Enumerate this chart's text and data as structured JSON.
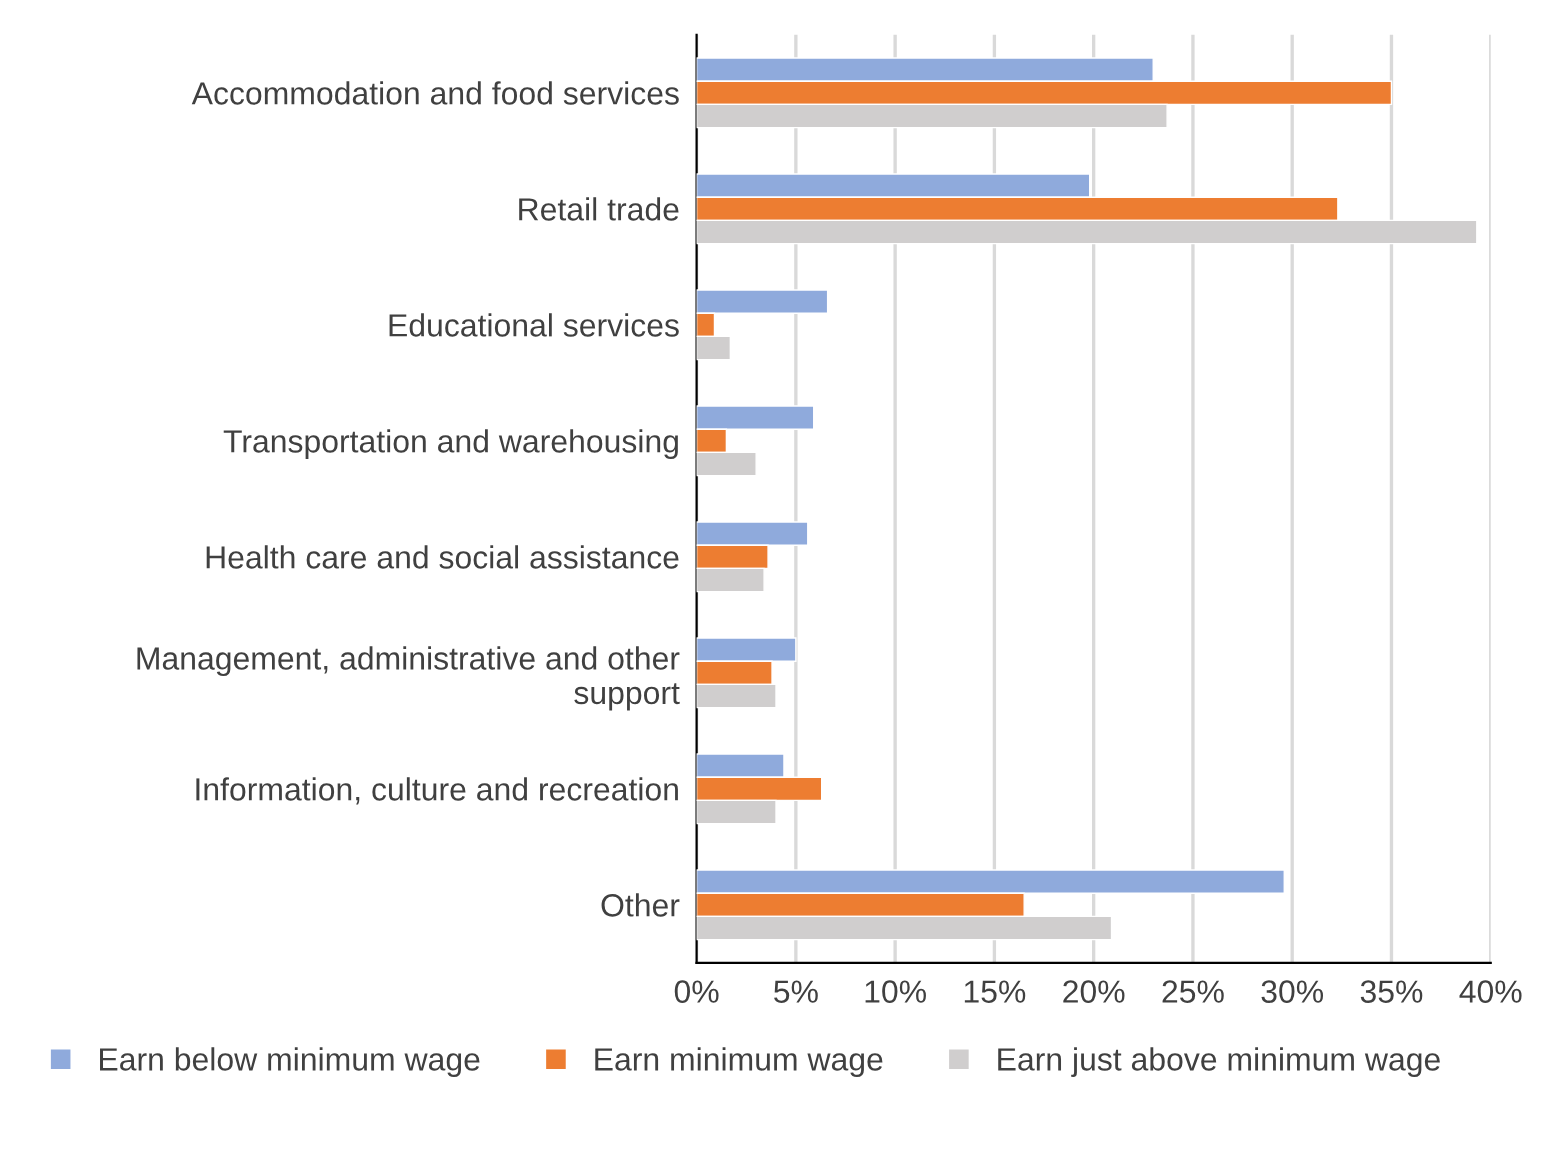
{
  "chart_data": {
    "type": "bar",
    "orientation": "horizontal",
    "categories": [
      "Accommodation and food services",
      "Retail trade",
      "Educational services",
      "Transportation and warehousing",
      "Health care and social assistance",
      "Management, administrative and other support",
      "Information, culture and recreation",
      "Other"
    ],
    "series": [
      {
        "name": "Earn below minimum wage",
        "color": "#8faadc",
        "values": [
          23.0,
          19.8,
          6.6,
          5.9,
          5.6,
          5.0,
          4.4,
          29.6
        ]
      },
      {
        "name": "Earn minimum wage",
        "color": "#ed7d31",
        "values": [
          35.0,
          32.3,
          0.9,
          1.5,
          3.6,
          3.8,
          6.3,
          16.5
        ]
      },
      {
        "name": "Earn just above minimum wage",
        "color": "#d0cece",
        "values": [
          23.7,
          39.3,
          1.7,
          3.0,
          3.4,
          4.0,
          4.0,
          20.9
        ]
      }
    ],
    "xlim": [
      0,
      40
    ],
    "xticks": [
      {
        "value": 0,
        "label": "0%"
      },
      {
        "value": 5,
        "label": "5%"
      },
      {
        "value": 10,
        "label": "10%"
      },
      {
        "value": 15,
        "label": "15%"
      },
      {
        "value": 20,
        "label": "20%"
      },
      {
        "value": 25,
        "label": "25%"
      },
      {
        "value": 30,
        "label": "30%"
      },
      {
        "value": 35,
        "label": "35%"
      },
      {
        "value": 40,
        "label": "40%"
      }
    ],
    "grid": "x",
    "legend": "bottom"
  }
}
